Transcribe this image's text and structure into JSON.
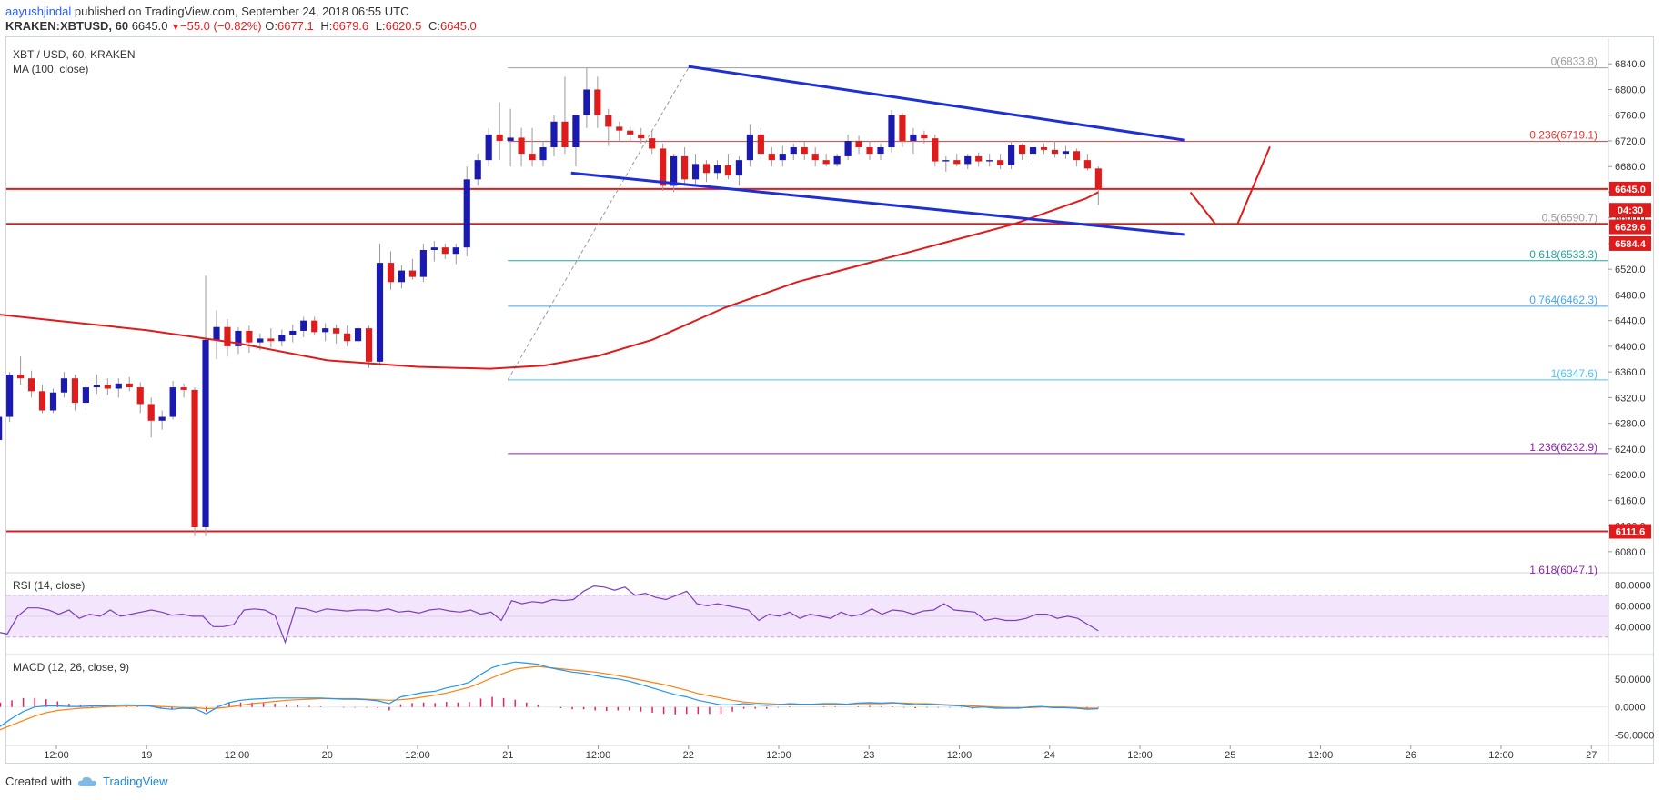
{
  "header": {
    "author": "aayushjindal",
    "published_text": " published on TradingView.com, September 24, 2018 06:55 UTC",
    "symbol": "KRAKEN:XBTUSD, 60",
    "last": "6645.0",
    "change_arrow": "▼",
    "change": "−55.0 (−0.82%)",
    "o_label": "O:",
    "o_val": "6677.1",
    "h_label": "H:",
    "h_val": "6679.6",
    "l_label": "L:",
    "l_val": "6620.5",
    "c_label": "C:",
    "c_val": "6645.0"
  },
  "footer": {
    "created_with": "Created with",
    "brand": "TradingView"
  },
  "colors": {
    "up": "#1a1ab0",
    "down": "#e01b1b",
    "ma": "#e01b1b",
    "trend": "#1f2fd6",
    "rsi": "#7b3fbf",
    "macd": "#2196f3",
    "signal": "#ff7f0e",
    "hist": "#e91e63",
    "fib_0": "#9e9e9e",
    "fib_0236": "#e53935",
    "fib_05": "#9e9e9e",
    "fib_0618": "#26a69a",
    "fib_0764": "#42a5f5",
    "fib_1": "#4fc3f7",
    "fib_1236": "#8e24aa"
  },
  "chart_data": {
    "type": "candlestick",
    "pane_title": "XBT / USD, 60, KRAKEN",
    "indicator_label": "MA (100, close)",
    "yticks": [
      6080,
      6120,
      6160,
      6200,
      6240,
      6280,
      6320,
      6360,
      6400,
      6440,
      6480,
      6520,
      6560,
      6600,
      6640,
      6680,
      6720,
      6760,
      6800,
      6840
    ],
    "ylim": [
      6050,
      6880
    ],
    "xticks": [
      {
        "label": "12:00",
        "t": 0.5
      },
      {
        "label": "19",
        "t": 1.0
      },
      {
        "label": "12:00",
        "t": 1.5
      },
      {
        "label": "20",
        "t": 2.0
      },
      {
        "label": "12:00",
        "t": 2.5
      },
      {
        "label": "21",
        "t": 3.0
      },
      {
        "label": "12:00",
        "t": 3.5
      },
      {
        "label": "22",
        "t": 4.0
      },
      {
        "label": "12:00",
        "t": 4.5
      },
      {
        "label": "23",
        "t": 5.0
      },
      {
        "label": "12:00",
        "t": 5.5
      },
      {
        "label": "24",
        "t": 6.0
      },
      {
        "label": "12:00",
        "t": 6.5
      },
      {
        "label": "25",
        "t": 7.0
      },
      {
        "label": "12:00",
        "t": 7.5
      },
      {
        "label": "26",
        "t": 8.0
      },
      {
        "label": "12:00",
        "t": 8.5
      },
      {
        "label": "27",
        "t": 9.0
      }
    ],
    "candles": [
      [
        6268,
        6288,
        6262,
        6282
      ],
      [
        6282,
        6284,
        6240,
        6248
      ],
      [
        6248,
        6262,
        6236,
        6254
      ],
      [
        6254,
        6300,
        6250,
        6290
      ],
      [
        6290,
        6360,
        6282,
        6356
      ],
      [
        6356,
        6384,
        6340,
        6350
      ],
      [
        6350,
        6362,
        6320,
        6330
      ],
      [
        6330,
        6340,
        6296,
        6300
      ],
      [
        6300,
        6334,
        6296,
        6328
      ],
      [
        6328,
        6360,
        6320,
        6350
      ],
      [
        6350,
        6356,
        6300,
        6312
      ],
      [
        6312,
        6342,
        6300,
        6336
      ],
      [
        6336,
        6356,
        6326,
        6340
      ],
      [
        6340,
        6350,
        6324,
        6334
      ],
      [
        6334,
        6350,
        6320,
        6342
      ],
      [
        6342,
        6352,
        6330,
        6336
      ],
      [
        6336,
        6344,
        6296,
        6310
      ],
      [
        6310,
        6320,
        6258,
        6284
      ],
      [
        6284,
        6300,
        6270,
        6290
      ],
      [
        6290,
        6346,
        6286,
        6336
      ],
      [
        6336,
        6342,
        6320,
        6332
      ],
      [
        6332,
        6336,
        6104,
        6118
      ],
      [
        6118,
        6510,
        6104,
        6410
      ],
      [
        6410,
        6456,
        6380,
        6430
      ],
      [
        6430,
        6442,
        6384,
        6400
      ],
      [
        6400,
        6430,
        6388,
        6424
      ],
      [
        6424,
        6432,
        6390,
        6406
      ],
      [
        6406,
        6420,
        6394,
        6412
      ],
      [
        6412,
        6428,
        6398,
        6408
      ],
      [
        6408,
        6426,
        6400,
        6418
      ],
      [
        6418,
        6434,
        6406,
        6424
      ],
      [
        6424,
        6446,
        6414,
        6440
      ],
      [
        6440,
        6446,
        6418,
        6422
      ],
      [
        6422,
        6436,
        6408,
        6428
      ],
      [
        6428,
        6434,
        6404,
        6420
      ],
      [
        6420,
        6432,
        6400,
        6408
      ],
      [
        6408,
        6430,
        6400,
        6428
      ],
      [
        6428,
        6432,
        6366,
        6376
      ],
      [
        6376,
        6560,
        6370,
        6530
      ],
      [
        6530,
        6548,
        6488,
        6500
      ],
      [
        6500,
        6526,
        6490,
        6518
      ],
      [
        6518,
        6536,
        6504,
        6508
      ],
      [
        6508,
        6560,
        6500,
        6550
      ],
      [
        6550,
        6564,
        6532,
        6554
      ],
      [
        6554,
        6560,
        6536,
        6544
      ],
      [
        6544,
        6560,
        6528,
        6554
      ],
      [
        6554,
        6680,
        6540,
        6660
      ],
      [
        6660,
        6700,
        6650,
        6690
      ],
      [
        6690,
        6740,
        6680,
        6730
      ],
      [
        6730,
        6780,
        6690,
        6720
      ],
      [
        6720,
        6770,
        6680,
        6725
      ],
      [
        6725,
        6740,
        6680,
        6700
      ],
      [
        6700,
        6740,
        6680,
        6690
      ],
      [
        6690,
        6720,
        6680,
        6710
      ],
      [
        6710,
        6760,
        6696,
        6750
      ],
      [
        6750,
        6820,
        6700,
        6710
      ],
      [
        6710,
        6760,
        6680,
        6760
      ],
      [
        6760,
        6834,
        6740,
        6800
      ],
      [
        6800,
        6820,
        6740,
        6760
      ],
      [
        6760,
        6770,
        6712,
        6742
      ],
      [
        6742,
        6750,
        6720,
        6736
      ],
      [
        6736,
        6742,
        6720,
        6730
      ],
      [
        6730,
        6740,
        6716,
        6724
      ],
      [
        6724,
        6736,
        6700,
        6708
      ],
      [
        6708,
        6716,
        6642,
        6650
      ],
      [
        6650,
        6700,
        6640,
        6696
      ],
      [
        6696,
        6710,
        6650,
        6660
      ],
      [
        6660,
        6700,
        6650,
        6684
      ],
      [
        6684,
        6690,
        6656,
        6670
      ],
      [
        6670,
        6690,
        6660,
        6682
      ],
      [
        6682,
        6700,
        6660,
        6666
      ],
      [
        6666,
        6696,
        6650,
        6690
      ],
      [
        6690,
        6746,
        6680,
        6730
      ],
      [
        6730,
        6740,
        6690,
        6700
      ],
      [
        6700,
        6710,
        6680,
        6690
      ],
      [
        6690,
        6712,
        6680,
        6700
      ],
      [
        6700,
        6716,
        6690,
        6710
      ],
      [
        6710,
        6718,
        6690,
        6700
      ],
      [
        6700,
        6710,
        6680,
        6690
      ],
      [
        6690,
        6700,
        6680,
        6684
      ],
      [
        6684,
        6700,
        6680,
        6696
      ],
      [
        6696,
        6730,
        6690,
        6720
      ],
      [
        6720,
        6728,
        6700,
        6710
      ],
      [
        6710,
        6720,
        6690,
        6700
      ],
      [
        6700,
        6716,
        6690,
        6710
      ],
      [
        6710,
        6768,
        6702,
        6760
      ],
      [
        6760,
        6764,
        6710,
        6720
      ],
      [
        6720,
        6740,
        6700,
        6730
      ],
      [
        6730,
        6736,
        6716,
        6724
      ],
      [
        6724,
        6730,
        6680,
        6688
      ],
      [
        6688,
        6696,
        6672,
        6690
      ],
      [
        6690,
        6700,
        6680,
        6684
      ],
      [
        6684,
        6700,
        6676,
        6696
      ],
      [
        6696,
        6702,
        6680,
        6688
      ],
      [
        6688,
        6700,
        6680,
        6690
      ],
      [
        6690,
        6700,
        6676,
        6682
      ],
      [
        6682,
        6720,
        6676,
        6714
      ],
      [
        6714,
        6716,
        6690,
        6700
      ],
      [
        6700,
        6714,
        6686,
        6710
      ],
      [
        6710,
        6716,
        6700,
        6706
      ],
      [
        6706,
        6720,
        6694,
        6700
      ],
      [
        6700,
        6712,
        6692,
        6704
      ],
      [
        6704,
        6708,
        6680,
        6690
      ],
      [
        6690,
        6700,
        6674,
        6677
      ],
      [
        6677,
        6680,
        6620,
        6645
      ]
    ],
    "ma_points": [
      [
        0,
        6455
      ],
      [
        0.5,
        6440
      ],
      [
        1.0,
        6425
      ],
      [
        1.5,
        6405
      ],
      [
        2.0,
        6378
      ],
      [
        2.5,
        6368
      ],
      [
        2.9,
        6365
      ],
      [
        3.2,
        6370
      ],
      [
        3.5,
        6385
      ],
      [
        3.8,
        6410
      ],
      [
        4.2,
        6460
      ],
      [
        4.6,
        6500
      ],
      [
        5.0,
        6530
      ],
      [
        5.4,
        6560
      ],
      [
        5.8,
        6590
      ],
      [
        6.0,
        6610
      ],
      [
        6.2,
        6630
      ],
      [
        6.27,
        6640
      ]
    ],
    "trend_upper": [
      [
        4.0,
        6836
      ],
      [
        6.75,
        6721
      ]
    ],
    "trend_lower": [
      [
        3.35,
        6670
      ],
      [
        6.75,
        6574
      ]
    ],
    "h_lines": [
      6645.0,
      6590.7,
      6111.6
    ],
    "fib_levels": [
      {
        "label": "0(6833.8)",
        "price": 6833.8,
        "key": "fib_0"
      },
      {
        "label": "0.236(6719.1)",
        "price": 6719.1,
        "key": "fib_0236"
      },
      {
        "label": "0.5(6590.7)",
        "price": 6590.7,
        "key": "fib_05"
      },
      {
        "label": "0.618(6533.3)",
        "price": 6533.3,
        "key": "fib_0618"
      },
      {
        "label": "0.764(6462.3)",
        "price": 6462.3,
        "key": "fib_0764"
      },
      {
        "label": "1(6347.6)",
        "price": 6347.6,
        "key": "fib_1"
      },
      {
        "label": "1.236(6232.9)",
        "price": 6232.9,
        "key": "fib_1236"
      },
      {
        "label": "1.618(6047.1)",
        "price": 6047.1,
        "key": "fib_1236"
      }
    ],
    "price_labels": [
      {
        "text": "6645.0",
        "price": 6645.0,
        "bg": "#e01b1b"
      },
      {
        "text": "04:30",
        "price": 6612,
        "bg": "#e01b1b"
      },
      {
        "text": "6629.6",
        "price": 6586,
        "bg": "#e01b1b"
      },
      {
        "text": "6584.4",
        "price": 6560,
        "bg": "#e01b1b"
      },
      {
        "text": "6111.6",
        "price": 6111.6,
        "bg": "#e01b1b"
      }
    ],
    "projection": [
      [
        6.78,
        6640
      ],
      [
        6.92,
        6590
      ],
      [
        7.22,
        6711
      ]
    ],
    "rsi": {
      "label": "RSI (14, close)",
      "yticks": [
        40,
        60,
        80
      ],
      "ytick_labels": [
        "40.0000",
        "60.0000",
        "80.0000"
      ],
      "band": [
        30,
        70
      ],
      "values": [
        33,
        37,
        34,
        35,
        33,
        50,
        58,
        58,
        56,
        52,
        56,
        48,
        52,
        50,
        56,
        50,
        52,
        54,
        56,
        54,
        51,
        52,
        50,
        50,
        40,
        40,
        42,
        56,
        57,
        56,
        51,
        25,
        58,
        57,
        54,
        57,
        56,
        55,
        56,
        56,
        55,
        57,
        54,
        55,
        53,
        56,
        57,
        55,
        54,
        56,
        52,
        54,
        46,
        65,
        62,
        64,
        63,
        66,
        65,
        66,
        74,
        79,
        78,
        75,
        78,
        70,
        72,
        68,
        66,
        70,
        74,
        62,
        60,
        62,
        60,
        58,
        56,
        46,
        52,
        50,
        54,
        48,
        52,
        50,
        48,
        54,
        50,
        52,
        57,
        52,
        56,
        55,
        52,
        55,
        56,
        62,
        56,
        55,
        54,
        46,
        48,
        46,
        46,
        48,
        52,
        52,
        48,
        50,
        48,
        42,
        36
      ]
    },
    "macd": {
      "label": "MACD (12, 26, close, 9)",
      "yticks": [
        -50,
        0,
        50
      ],
      "ytick_labels": [
        "-50.0000",
        "0.0000",
        "50.0000"
      ],
      "macd": [
        -48,
        -44,
        -40,
        -34,
        -20,
        -8,
        0,
        2,
        2,
        1,
        1,
        2,
        2,
        3,
        4,
        3,
        2,
        -2,
        -4,
        -2,
        -3,
        -12,
        0,
        8,
        12,
        14,
        15,
        16,
        16,
        16,
        16,
        16,
        15,
        14,
        14,
        13,
        11,
        6,
        18,
        22,
        26,
        28,
        34,
        38,
        44,
        58,
        70,
        76,
        80,
        78,
        76,
        70,
        66,
        62,
        60,
        56,
        52,
        50,
        46,
        40,
        34,
        28,
        22,
        18,
        12,
        8,
        4,
        4,
        6,
        4,
        3,
        4,
        6,
        5,
        5,
        6,
        6,
        5,
        7,
        8,
        7,
        8,
        6,
        4,
        5,
        4,
        3,
        2,
        -1,
        0,
        -2,
        -2,
        -2,
        0,
        1,
        -1,
        -1,
        -2,
        -4,
        -3
      ],
      "signal": [
        -56,
        -52,
        -46,
        -40,
        -32,
        -24,
        -16,
        -10,
        -6,
        -4,
        -2,
        -1,
        0,
        1,
        2,
        2,
        2,
        1,
        0,
        -1,
        -1,
        -3,
        -2,
        0,
        3,
        6,
        8,
        10,
        12,
        13,
        14,
        15,
        15,
        15,
        15,
        14,
        13,
        12,
        13,
        15,
        18,
        21,
        25,
        30,
        35,
        43,
        52,
        60,
        67,
        70,
        72,
        70,
        68,
        66,
        64,
        62,
        59,
        56,
        52,
        48,
        44,
        40,
        35,
        30,
        24,
        20,
        16,
        12,
        9,
        7,
        6,
        5,
        5,
        5,
        5,
        5,
        5,
        5,
        6,
        6,
        6,
        7,
        7,
        6,
        6,
        5,
        4,
        3,
        2,
        1,
        0,
        -1,
        -1,
        -1,
        0,
        0,
        0,
        -1,
        -2,
        -2
      ],
      "hist": [
        8,
        8,
        8,
        8,
        12,
        16,
        16,
        14,
        10,
        6,
        4,
        2,
        2,
        2,
        2,
        1,
        0,
        -2,
        -4,
        -2,
        -2,
        -8,
        2,
        8,
        8,
        8,
        7,
        6,
        4,
        3,
        2,
        1,
        0,
        -1,
        -1,
        -1,
        -2,
        -6,
        5,
        7,
        8,
        7,
        9,
        8,
        9,
        15,
        18,
        16,
        13,
        8,
        4,
        0,
        -2,
        -4,
        -4,
        -6,
        -7,
        -6,
        -6,
        -8,
        -10,
        -12,
        -13,
        -12,
        -12,
        -12,
        -12,
        -8,
        -3,
        -3,
        -3,
        -1,
        1,
        0,
        0,
        1,
        1,
        0,
        1,
        2,
        1,
        1,
        -1,
        -2,
        -1,
        -1,
        -1,
        -1,
        -3,
        -1,
        -2,
        -1,
        -1,
        1,
        1,
        -1,
        -1,
        -1,
        -2,
        -1
      ]
    }
  }
}
